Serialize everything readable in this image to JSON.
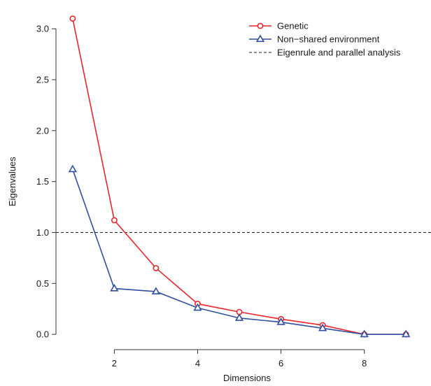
{
  "chart_data": {
    "type": "line",
    "title": "",
    "xlabel": "Dimensions",
    "ylabel": "Eigenvalues",
    "xlim": [
      0.6,
      9.6
    ],
    "ylim": [
      -0.15,
      3.2
    ],
    "xticks": [
      2,
      4,
      6,
      8
    ],
    "xtick_labels": [
      "2",
      "4",
      "6",
      "8"
    ],
    "yticks": [
      0.0,
      0.5,
      1.0,
      1.5,
      2.0,
      2.5,
      3.0
    ],
    "ytick_labels": [
      "0.0",
      "0.5",
      "1.0",
      "1.5",
      "2.0",
      "2.5",
      "3.0"
    ],
    "grid": false,
    "legend_position": "top-right",
    "x": [
      1,
      2,
      3,
      4,
      5,
      6,
      7,
      8,
      9
    ],
    "series": [
      {
        "name": "Genetic",
        "marker": "circle",
        "color": "#e8262b",
        "values": [
          3.1,
          1.12,
          0.65,
          0.3,
          0.22,
          0.15,
          0.09,
          0.0,
          0.0
        ]
      },
      {
        "name": "Non−shared environment",
        "marker": "triangle",
        "color": "#2f4fa0",
        "values": [
          1.62,
          0.45,
          0.42,
          0.26,
          0.16,
          0.12,
          0.06,
          0.0,
          0.0
        ]
      }
    ],
    "reference_lines": [
      {
        "name": "Eigenrule and parallel analysis",
        "y": 1.0,
        "style": "dashed",
        "color": "#222222"
      }
    ]
  }
}
